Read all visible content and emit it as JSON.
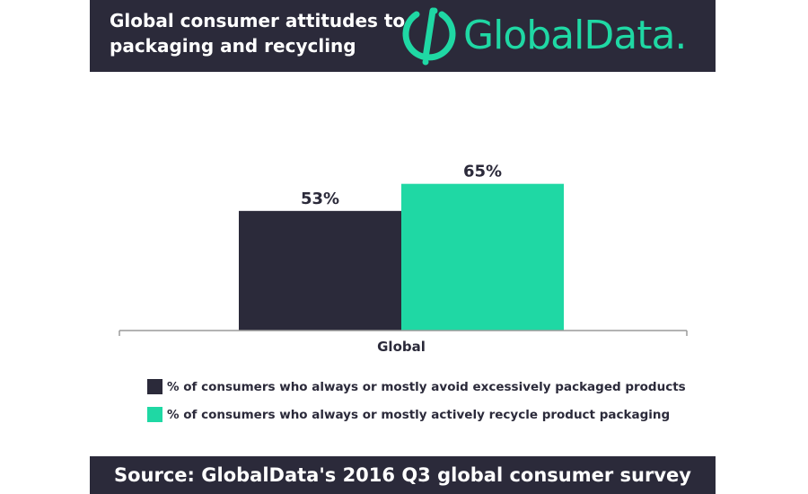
{
  "header": {
    "title": "Global consumer attitudes to packaging and recycling",
    "logo_text": "GlobalData."
  },
  "colors": {
    "dark": "#2b2a3a",
    "accent": "#1fd8a4"
  },
  "chart_data": {
    "type": "bar",
    "categories": [
      "Global"
    ],
    "series": [
      {
        "name": "% of consumers who always or mostly avoid excessively packaged products",
        "values": [
          53
        ],
        "color": "#2b2a3a"
      },
      {
        "name": "% of consumers who always or mostly actively recycle product packaging",
        "values": [
          65
        ],
        "color": "#1fd8a4"
      }
    ],
    "data_labels": [
      "53%",
      "65%"
    ],
    "ylim": [
      0,
      80
    ],
    "grid": false,
    "legend_placement": "bottom-left"
  },
  "footer": {
    "source": "Source: GlobalData's 2016 Q3 global consumer survey"
  }
}
